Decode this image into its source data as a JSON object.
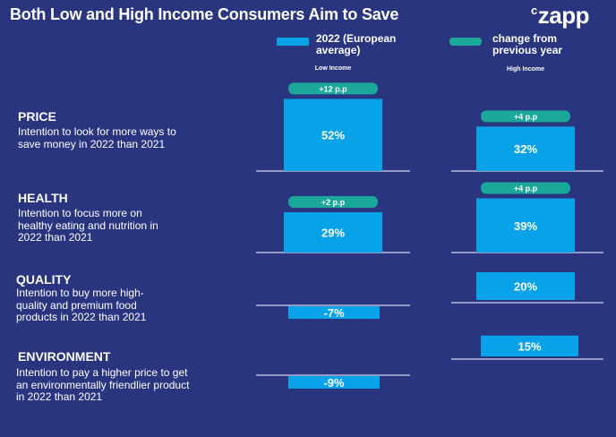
{
  "title": "Both Low and High Income Consumers Aim to Save",
  "brand": "zapp",
  "legend": [
    {
      "label": "2022 (European average)",
      "color": "#08a2e8"
    },
    {
      "label": "change from previous year",
      "color": "#1ba79a"
    }
  ],
  "colors": {
    "background": "#2a3580",
    "bar": "#08a2e8",
    "badge": "#1ba79a",
    "baseline": "#d5d8ec"
  },
  "chart_data": {
    "type": "bar",
    "title": "Both Low and High Income Consumers Aim to Save",
    "series": [
      {
        "name": "Low Income",
        "values": [
          52,
          29,
          -7,
          -9
        ],
        "changes": [
          "+12 p.p",
          "+2 p.p",
          "",
          ""
        ]
      },
      {
        "name": "High Income",
        "values": [
          32,
          39,
          20,
          15
        ],
        "changes": [
          "+4 p.p",
          "+4 p.p",
          "",
          ""
        ]
      }
    ],
    "categories": [
      {
        "name": "PRICE",
        "description": "Intention to look for more ways to save money in 2022 than 2021"
      },
      {
        "name": "HEALTH",
        "description": "Intention to focus more on healthy eating and nutrition in 2022 than 2021"
      },
      {
        "name": "QUALITY",
        "description": "Intention to buy more high-quality and premium food products in 2022 than 2021"
      },
      {
        "name": "ENVIRONMENT",
        "description": "Intention to pay a higher price to get an environmentally friendlier product in 2022 than 2021"
      }
    ],
    "value_suffix": "%",
    "unit": "%"
  }
}
